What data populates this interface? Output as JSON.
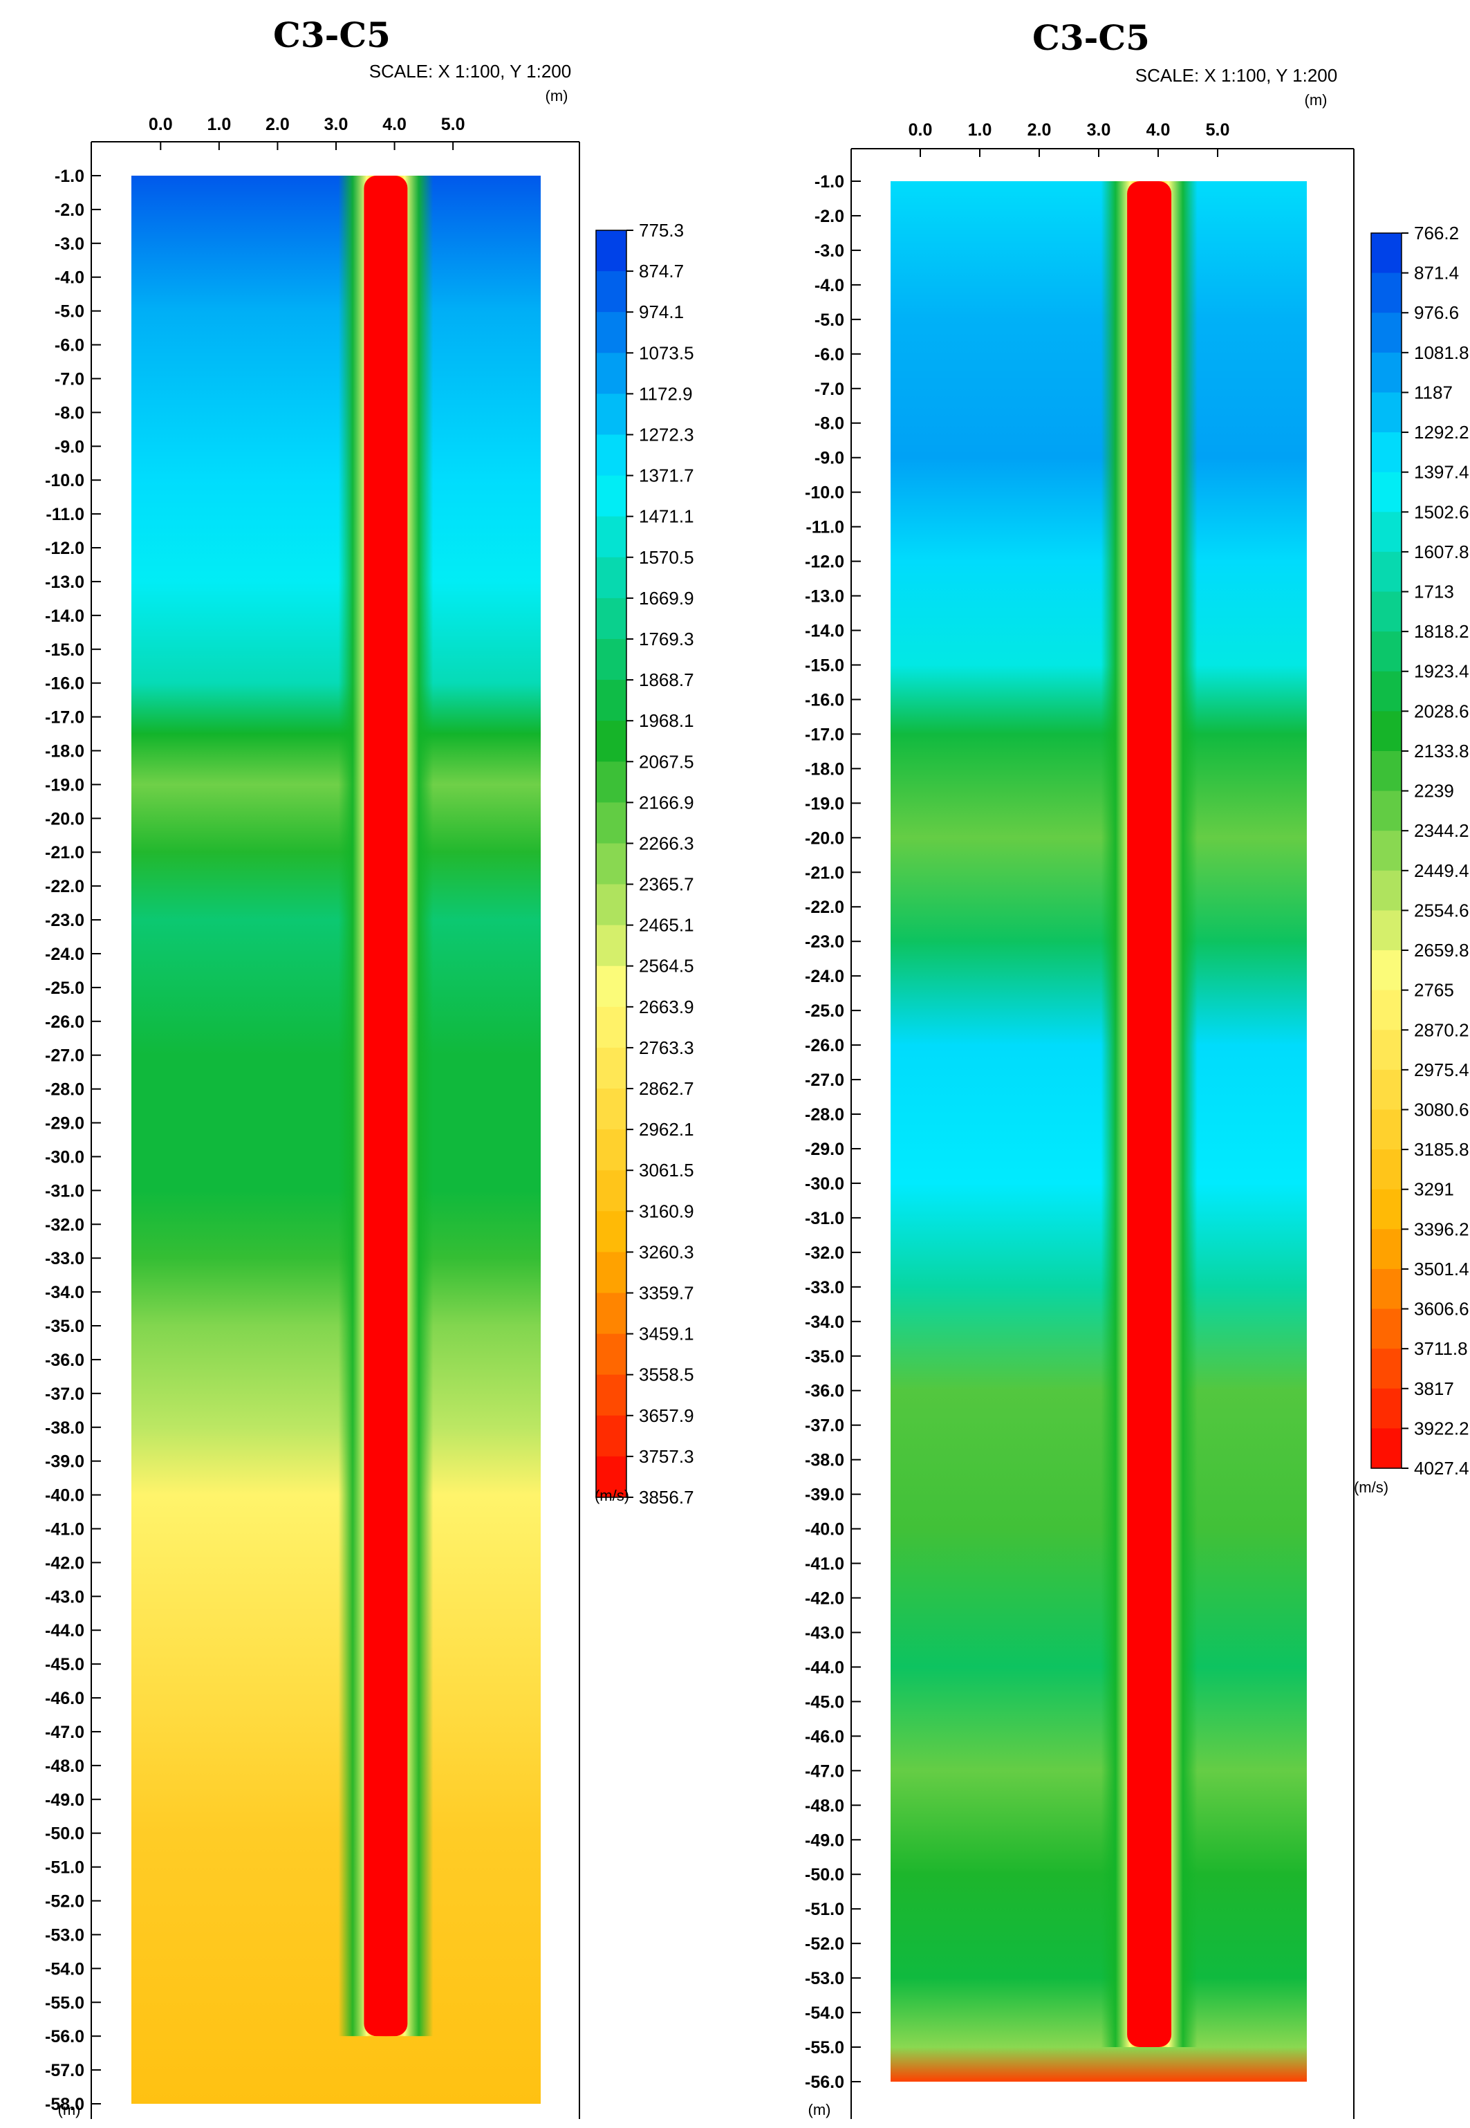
{
  "colors": {
    "blue": "#0033e6",
    "cyan": "#00f0ff",
    "green": "#12b328",
    "yellow": "#fffc7a",
    "orange": "#ffb700",
    "red": "#ff0000"
  },
  "chart_data": [
    {
      "type": "heatmap",
      "title": "C3-C5",
      "subtitle": "SCALE: X 1:100, Y 1:200",
      "x_unit": "(m)",
      "y_unit": "(m)",
      "colorbar_unit": "(m/s)",
      "x_ticks": [
        "0.0",
        "1.0",
        "2.0",
        "3.0",
        "4.0",
        "5.0"
      ],
      "xlim": [
        -0.5,
        6.5
      ],
      "ylim": [
        -1.0,
        -58.0
      ],
      "y_ticks": [
        "-1.0",
        "-2.0",
        "-3.0",
        "-4.0",
        "-5.0",
        "-6.0",
        "-7.0",
        "-8.0",
        "-9.0",
        "-10.0",
        "-11.0",
        "-12.0",
        "-13.0",
        "-14.0",
        "-15.0",
        "-16.0",
        "-17.0",
        "-18.0",
        "-19.0",
        "-20.0",
        "-21.0",
        "-22.0",
        "-23.0",
        "-24.0",
        "-25.0",
        "-26.0",
        "-27.0",
        "-28.0",
        "-29.0",
        "-30.0",
        "-31.0",
        "-32.0",
        "-33.0",
        "-34.0",
        "-35.0",
        "-36.0",
        "-37.0",
        "-38.0",
        "-39.0",
        "-40.0",
        "-41.0",
        "-42.0",
        "-43.0",
        "-44.0",
        "-45.0",
        "-46.0",
        "-47.0",
        "-48.0",
        "-49.0",
        "-50.0",
        "-51.0",
        "-52.0",
        "-53.0",
        "-54.0",
        "-55.0",
        "-56.0",
        "-57.0",
        "-58.0"
      ],
      "colorbar_ticks": [
        "775.3",
        "874.7",
        "974.1",
        "1073.5",
        "1172.9",
        "1272.3",
        "1371.7",
        "1471.1",
        "1570.5",
        "1669.9",
        "1769.3",
        "1868.7",
        "1968.1",
        "2067.5",
        "2166.9",
        "2266.3",
        "2365.7",
        "2465.1",
        "2564.5",
        "2663.9",
        "2763.3",
        "2862.7",
        "2962.1",
        "3061.5",
        "3160.9",
        "3260.3",
        "3359.7",
        "3459.1",
        "3558.5",
        "3657.9",
        "3757.3",
        "3856.7"
      ],
      "pile": {
        "x_center": 3.85,
        "half_width": 0.6,
        "depth_bottom": -56.0
      },
      "layers": [
        {
          "depth": -1.0,
          "velocity": 900
        },
        {
          "depth": -5.0,
          "velocity": 1180
        },
        {
          "depth": -10.0,
          "velocity": 1330
        },
        {
          "depth": -13.0,
          "velocity": 1420
        },
        {
          "depth": -16.0,
          "velocity": 1600
        },
        {
          "depth": -17.5,
          "velocity": 2000
        },
        {
          "depth": -19.0,
          "velocity": 2250
        },
        {
          "depth": -21.0,
          "velocity": 2050
        },
        {
          "depth": -23.0,
          "velocity": 1800
        },
        {
          "depth": -27.0,
          "velocity": 1950
        },
        {
          "depth": -31.0,
          "velocity": 1950
        },
        {
          "depth": -33.0,
          "velocity": 2100
        },
        {
          "depth": -35.0,
          "velocity": 2300
        },
        {
          "depth": -38.0,
          "velocity": 2450
        },
        {
          "depth": -40.0,
          "velocity": 2700
        },
        {
          "depth": -43.0,
          "velocity": 2800
        },
        {
          "depth": -46.0,
          "velocity": 2900
        },
        {
          "depth": -50.0,
          "velocity": 3050
        },
        {
          "depth": -54.0,
          "velocity": 3100
        },
        {
          "depth": -58.0,
          "velocity": 3150
        }
      ]
    },
    {
      "type": "heatmap",
      "title": "C3-C5",
      "subtitle": "SCALE: X 1:100, Y 1:200",
      "x_unit": "(m)",
      "y_unit": "(m)",
      "colorbar_unit": "(m/s)",
      "x_ticks": [
        "0.0",
        "1.0",
        "2.0",
        "3.0",
        "4.0",
        "5.0"
      ],
      "xlim": [
        -0.5,
        6.5
      ],
      "ylim": [
        -1.0,
        -56.0
      ],
      "y_ticks": [
        "-1.0",
        "-2.0",
        "-3.0",
        "-4.0",
        "-5.0",
        "-6.0",
        "-7.0",
        "-8.0",
        "-9.0",
        "-10.0",
        "-11.0",
        "-12.0",
        "-13.0",
        "-14.0",
        "-15.0",
        "-16.0",
        "-17.0",
        "-18.0",
        "-19.0",
        "-20.0",
        "-21.0",
        "-22.0",
        "-23.0",
        "-24.0",
        "-25.0",
        "-26.0",
        "-27.0",
        "-28.0",
        "-29.0",
        "-30.0",
        "-31.0",
        "-32.0",
        "-33.0",
        "-34.0",
        "-35.0",
        "-36.0",
        "-37.0",
        "-38.0",
        "-39.0",
        "-40.0",
        "-41.0",
        "-42.0",
        "-43.0",
        "-44.0",
        "-45.0",
        "-46.0",
        "-47.0",
        "-48.0",
        "-49.0",
        "-50.0",
        "-51.0",
        "-52.0",
        "-53.0",
        "-54.0",
        "-55.0",
        "-56.0"
      ],
      "colorbar_ticks": [
        "766.2",
        "871.4",
        "976.6",
        "1081.8",
        "1187",
        "1292.2",
        "1397.4",
        "1502.6",
        "1607.8",
        "1713",
        "1818.2",
        "1923.4",
        "2028.6",
        "2133.8",
        "2239",
        "2344.2",
        "2449.4",
        "2554.6",
        "2659.8",
        "2765",
        "2870.2",
        "2975.4",
        "3080.6",
        "3185.8",
        "3291",
        "3396.2",
        "3501.4",
        "3606.6",
        "3711.8",
        "3817",
        "3922.2",
        "4027.4"
      ],
      "pile": {
        "x_center": 3.85,
        "half_width": 0.6,
        "depth_bottom": -55.0
      },
      "layers": [
        {
          "depth": -1.0,
          "velocity": 1350
        },
        {
          "depth": -5.0,
          "velocity": 1200
        },
        {
          "depth": -9.0,
          "velocity": 1150
        },
        {
          "depth": -12.0,
          "velocity": 1350
        },
        {
          "depth": -15.0,
          "velocity": 1500
        },
        {
          "depth": -17.0,
          "velocity": 2000
        },
        {
          "depth": -20.0,
          "velocity": 2300
        },
        {
          "depth": -23.0,
          "velocity": 1900
        },
        {
          "depth": -26.0,
          "velocity": 1350
        },
        {
          "depth": -30.0,
          "velocity": 1400
        },
        {
          "depth": -33.0,
          "velocity": 1700
        },
        {
          "depth": -36.0,
          "velocity": 2250
        },
        {
          "depth": -40.0,
          "velocity": 2200
        },
        {
          "depth": -44.0,
          "velocity": 1900
        },
        {
          "depth": -47.0,
          "velocity": 2300
        },
        {
          "depth": -50.0,
          "velocity": 2100
        },
        {
          "depth": -53.0,
          "velocity": 2000
        },
        {
          "depth": -55.0,
          "velocity": 2400
        },
        {
          "depth": -56.0,
          "velocity": 3800
        }
      ]
    }
  ]
}
